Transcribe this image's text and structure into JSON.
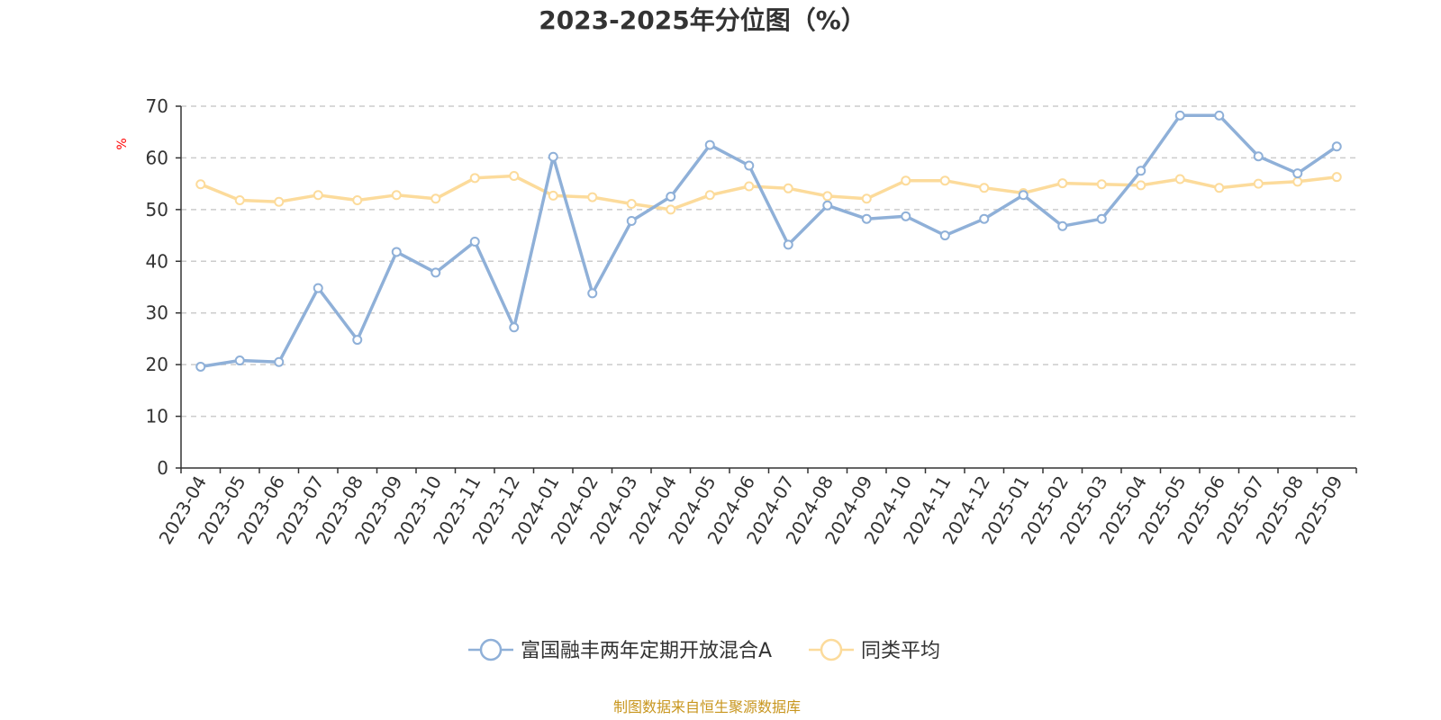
{
  "chart_data": {
    "type": "line",
    "title": "2023-2025年分位图（%）",
    "ylabel": "%",
    "ylim": [
      0,
      70
    ],
    "ytick_step": 10,
    "grid": true,
    "legend_position": "bottom",
    "categories": [
      "2023-04",
      "2023-05",
      "2023-06",
      "2023-07",
      "2023-08",
      "2023-09",
      "2023-10",
      "2023-11",
      "2023-12",
      "2024-01",
      "2024-02",
      "2024-03",
      "2024-04",
      "2024-05",
      "2024-06",
      "2024-07",
      "2024-08",
      "2024-09",
      "2024-10",
      "2024-11",
      "2024-12",
      "2025-01",
      "2025-02",
      "2025-03",
      "2025-04",
      "2025-05",
      "2025-06",
      "2025-07",
      "2025-08",
      "2025-09"
    ],
    "series": [
      {
        "name": "富国融丰两年定期开放混合A",
        "color": "#8fb0d8",
        "values": [
          19.6,
          20.8,
          20.5,
          34.8,
          24.8,
          41.8,
          37.8,
          43.8,
          27.2,
          60.2,
          33.8,
          47.8,
          52.5,
          62.5,
          58.5,
          43.2,
          50.8,
          48.2,
          48.7,
          45.0,
          48.2,
          52.8,
          46.8,
          48.2,
          57.5,
          68.2,
          68.2,
          60.3,
          57.0,
          62.2
        ]
      },
      {
        "name": "同类平均",
        "color": "#fcdb9b",
        "values": [
          54.9,
          51.8,
          51.5,
          52.8,
          51.8,
          52.8,
          52.1,
          56.1,
          56.5,
          52.7,
          52.4,
          51.1,
          50.0,
          52.8,
          54.5,
          54.1,
          52.6,
          52.1,
          55.6,
          55.6,
          54.2,
          53.2,
          55.1,
          54.9,
          54.7,
          55.9,
          54.2,
          55.0,
          55.4,
          56.3
        ]
      }
    ],
    "colors": {
      "axis": "#333333",
      "grid": "#cccccc",
      "unit": "#ff0000",
      "source": "#c8961e"
    }
  },
  "footer": {
    "source": "制图数据来自恒生聚源数据库"
  }
}
